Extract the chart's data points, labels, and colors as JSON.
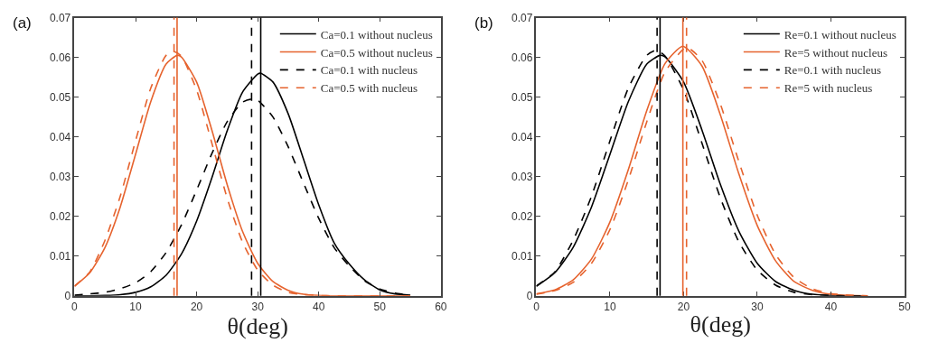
{
  "chart_data": [
    {
      "type": "line",
      "annotations": [
        "(a)"
      ],
      "xlabel": "θ(deg)",
      "xlim": [
        0,
        60
      ],
      "xticks": [
        0,
        10,
        20,
        30,
        40,
        50,
        60
      ],
      "ylim": [
        0,
        0.07
      ],
      "yticks": [
        0,
        0.01,
        0.02,
        0.03,
        0.04,
        0.05,
        0.06,
        0.07
      ],
      "grid": false,
      "legend": "top right",
      "marker": "none",
      "series": [
        {
          "name": "Ca=0.1 without nucleus",
          "color": "#000000",
          "line_style": "solid",
          "x": [
            0,
            2.5,
            5,
            7.5,
            10,
            12.5,
            15,
            17.5,
            20,
            22.5,
            25,
            27.5,
            30,
            30.5,
            32.5,
            35,
            37.5,
            40,
            42.5,
            45,
            47.5,
            50,
            52.5,
            55
          ],
          "values": [
            0.0,
            0.0,
            0.0001,
            0.0003,
            0.0009,
            0.0023,
            0.0052,
            0.0105,
            0.0188,
            0.0297,
            0.0415,
            0.0512,
            0.0558,
            0.056,
            0.0538,
            0.0458,
            0.0344,
            0.0229,
            0.0134,
            0.008,
            0.004,
            0.0015,
            0.0005,
            0.0002
          ]
        },
        {
          "name": "Ca=0.5 without nucleus",
          "color": "#e6632e",
          "line_style": "solid",
          "x": [
            0,
            2.5,
            5,
            7.5,
            10,
            12.5,
            15,
            16.8,
            17.5,
            20,
            22.5,
            25,
            27.5,
            30,
            32.5,
            35,
            37.5,
            40,
            42.5,
            45,
            47.5,
            50,
            52.5,
            55
          ],
          "values": [
            0.0024,
            0.0058,
            0.0122,
            0.0224,
            0.0356,
            0.0489,
            0.0583,
            0.0605,
            0.0601,
            0.0538,
            0.0417,
            0.028,
            0.0163,
            0.0082,
            0.0036,
            0.0014,
            0.0004,
            0.0001,
            0.0,
            0.0,
            0.0,
            0.0,
            0.0,
            0.0
          ]
        },
        {
          "name": "Ca=0.1 with nucleus",
          "color": "#000000",
          "line_style": "dashed",
          "x": [
            0,
            2.5,
            5,
            7.5,
            10,
            12.5,
            15,
            17.5,
            20,
            22.5,
            25,
            27.5,
            29,
            30,
            32.5,
            35,
            37.5,
            40,
            42.5,
            45,
            47.5,
            50,
            52.5,
            55
          ],
          "values": [
            0.0002,
            0.0005,
            0.0009,
            0.0018,
            0.0033,
            0.0061,
            0.0109,
            0.0178,
            0.0266,
            0.0358,
            0.0438,
            0.0487,
            0.0495,
            0.0492,
            0.045,
            0.0375,
            0.0284,
            0.0195,
            0.0122,
            0.0075,
            0.0038,
            0.0017,
            0.0007,
            0.0002
          ]
        },
        {
          "name": "Ca=0.5 with nucleus",
          "color": "#e6632e",
          "line_style": "dashed",
          "x": [
            0,
            2.5,
            5,
            7.5,
            10,
            12.5,
            15,
            16.2,
            17.5,
            20,
            22.5,
            25,
            27.5,
            30,
            32.5,
            35,
            37.5,
            40,
            42.5,
            45,
            47.5,
            50,
            52.5,
            55
          ],
          "values": [
            0.0025,
            0.006,
            0.014,
            0.0251,
            0.039,
            0.0523,
            0.0605,
            0.0615,
            0.0603,
            0.0518,
            0.0384,
            0.0246,
            0.0136,
            0.0065,
            0.0027,
            0.0009,
            0.0003,
            0.0001,
            0.0,
            0.0,
            0.0,
            0.0,
            0.0,
            0.0
          ]
        }
      ],
      "ref_lines": [
        {
          "axis": "x",
          "value": 30.5,
          "color": "#000000",
          "line_style": "solid"
        },
        {
          "axis": "x",
          "value": 16.8,
          "color": "#e6632e",
          "line_style": "solid"
        },
        {
          "axis": "x",
          "value": 29,
          "color": "#000000",
          "line_style": "dashed"
        },
        {
          "axis": "x",
          "value": 16.3,
          "color": "#e6632e",
          "line_style": "dashed"
        }
      ]
    },
    {
      "type": "line",
      "annotations": [
        "(b)"
      ],
      "xlabel": "θ(deg)",
      "xlim": [
        0,
        50
      ],
      "xticks": [
        0,
        10,
        20,
        30,
        40,
        50
      ],
      "ylim": [
        0,
        0.07
      ],
      "yticks": [
        0,
        0.01,
        0.02,
        0.03,
        0.04,
        0.05,
        0.06,
        0.07
      ],
      "grid": false,
      "legend": "top right",
      "marker": "none",
      "series": [
        {
          "name": "Re=0.1 without nucleus",
          "color": "#000000",
          "line_style": "solid",
          "x": [
            0,
            2.5,
            5,
            7.5,
            10,
            12.5,
            15,
            16.8,
            17.5,
            20,
            22.5,
            25,
            27.5,
            30,
            32.5,
            35,
            37.5,
            40,
            42.5,
            45
          ],
          "values": [
            0.0024,
            0.0058,
            0.0122,
            0.0224,
            0.0356,
            0.0489,
            0.0583,
            0.0605,
            0.0601,
            0.0538,
            0.0417,
            0.028,
            0.0163,
            0.0082,
            0.0036,
            0.0014,
            0.0004,
            0.0001,
            0.0,
            0.0
          ]
        },
        {
          "name": "Re=5 without nucleus",
          "color": "#e6632e",
          "line_style": "solid",
          "x": [
            0,
            2.5,
            5,
            7.5,
            10,
            12.5,
            15,
            17.5,
            19.9,
            22.5,
            25,
            27.5,
            30,
            32.5,
            35,
            37.5,
            40,
            42.5,
            45
          ],
          "values": [
            0.0005,
            0.0015,
            0.004,
            0.0093,
            0.0186,
            0.0318,
            0.0466,
            0.0585,
            0.0628,
            0.0578,
            0.0455,
            0.0307,
            0.0177,
            0.0088,
            0.0036,
            0.0014,
            0.0004,
            0.0001,
            0.0
          ]
        },
        {
          "name": "Re=0.1 with nucleus",
          "color": "#000000",
          "line_style": "dashed",
          "x": [
            0,
            2.5,
            5,
            7.5,
            10,
            12.5,
            15,
            16.3,
            17.5,
            20,
            22.5,
            25,
            27.5,
            30,
            32.5,
            35,
            37.5,
            40,
            42.5,
            45
          ],
          "values": [
            0.0025,
            0.006,
            0.014,
            0.0251,
            0.039,
            0.0523,
            0.0605,
            0.0618,
            0.0603,
            0.0518,
            0.0384,
            0.0246,
            0.0136,
            0.0065,
            0.0027,
            0.0009,
            0.0003,
            0.0001,
            0.0,
            0.0
          ]
        },
        {
          "name": "Re=5 with nucleus",
          "color": "#e6632e",
          "line_style": "dashed",
          "x": [
            0,
            2.5,
            5,
            7.5,
            10,
            12.5,
            15,
            17.5,
            20.4,
            22.5,
            25,
            27.5,
            30,
            32.5,
            35,
            37.5,
            40,
            42.5,
            45
          ],
          "values": [
            0.0004,
            0.0013,
            0.0034,
            0.0082,
            0.0167,
            0.0292,
            0.0438,
            0.0564,
            0.0625,
            0.0592,
            0.0482,
            0.0338,
            0.0203,
            0.0104,
            0.0046,
            0.0018,
            0.0006,
            0.0002,
            0.0
          ]
        }
      ],
      "ref_lines": [
        {
          "axis": "x",
          "value": 16.8,
          "color": "#000000",
          "line_style": "solid"
        },
        {
          "axis": "x",
          "value": 19.9,
          "color": "#e6632e",
          "line_style": "solid"
        },
        {
          "axis": "x",
          "value": 16.4,
          "color": "#000000",
          "line_style": "dashed"
        },
        {
          "axis": "x",
          "value": 20.4,
          "color": "#e6632e",
          "line_style": "dashed"
        }
      ]
    }
  ]
}
